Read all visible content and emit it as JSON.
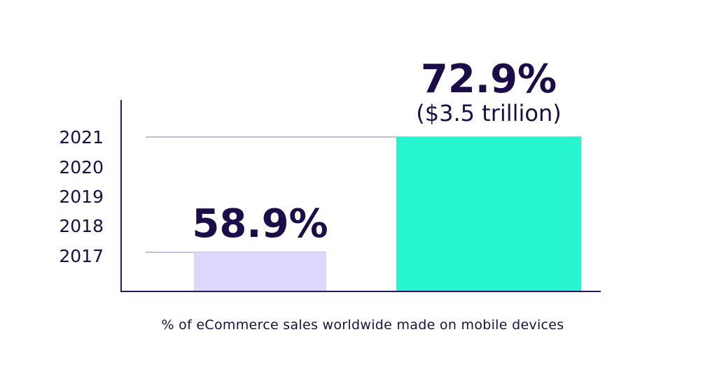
{
  "chart_data": {
    "type": "bar",
    "categories": [
      "2017",
      "2021"
    ],
    "values": [
      58.9,
      72.9
    ],
    "data_labels": [
      "58.9%",
      "72.9%"
    ],
    "annotations": [
      "",
      "($3.5 trillion)"
    ],
    "y_tick_labels": [
      "2021",
      "2020",
      "2019",
      "2018",
      "2017"
    ],
    "xlabel": "% of eCommerce sales worldwide made on mobile devices",
    "ylabel": "",
    "grid": false,
    "colors": {
      "bars": [
        "#dcd7fc",
        "#27f5d0"
      ],
      "text": "#1c0d4a",
      "axis": "#2a1760",
      "reference_line": "#8a7fb8"
    }
  }
}
